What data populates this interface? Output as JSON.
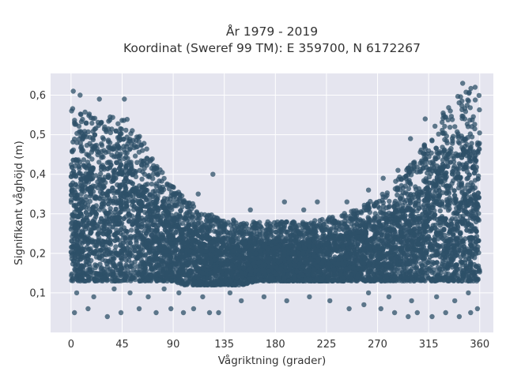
{
  "chart_data": {
    "type": "scatter",
    "title_line1": "År 1979 - 2019",
    "title_line2": "Koordinat (Sweref 99 TM): E 359700, N 6172267",
    "xlabel": "Vågriktning (grader)",
    "ylabel": "Signifikant våghöjd (m)",
    "xlim": [
      -18,
      372
    ],
    "ylim": [
      0.0,
      0.655
    ],
    "xticks": [
      0,
      45,
      90,
      135,
      180,
      225,
      270,
      315,
      360
    ],
    "xtick_labels": [
      "0",
      "45",
      "90",
      "135",
      "180",
      "225",
      "270",
      "315",
      "360"
    ],
    "yticks": [
      0.1,
      0.2,
      0.3,
      0.4,
      0.5,
      0.6
    ],
    "ytick_labels": [
      "0,1",
      "0,2",
      "0,3",
      "0,4",
      "0,5",
      "0,6"
    ],
    "marker_color": "#2e5068",
    "plot_background": "#e5e5ef",
    "grid": true,
    "dense_band": [
      {
        "x": 0,
        "ymin": 0.13,
        "ymax": 0.58
      },
      {
        "x": 10,
        "ymin": 0.13,
        "ymax": 0.56
      },
      {
        "x": 20,
        "ymin": 0.13,
        "ymax": 0.55
      },
      {
        "x": 30,
        "ymin": 0.13,
        "ymax": 0.55
      },
      {
        "x": 40,
        "ymin": 0.13,
        "ymax": 0.56
      },
      {
        "x": 50,
        "ymin": 0.13,
        "ymax": 0.54
      },
      {
        "x": 60,
        "ymin": 0.13,
        "ymax": 0.5
      },
      {
        "x": 70,
        "ymin": 0.13,
        "ymax": 0.45
      },
      {
        "x": 80,
        "ymin": 0.13,
        "ymax": 0.41
      },
      {
        "x": 90,
        "ymin": 0.13,
        "ymax": 0.37
      },
      {
        "x": 100,
        "ymin": 0.12,
        "ymax": 0.34
      },
      {
        "x": 110,
        "ymin": 0.12,
        "ymax": 0.32
      },
      {
        "x": 120,
        "ymin": 0.12,
        "ymax": 0.3
      },
      {
        "x": 135,
        "ymin": 0.12,
        "ymax": 0.29
      },
      {
        "x": 150,
        "ymin": 0.12,
        "ymax": 0.28
      },
      {
        "x": 165,
        "ymin": 0.13,
        "ymax": 0.28
      },
      {
        "x": 180,
        "ymin": 0.13,
        "ymax": 0.28
      },
      {
        "x": 195,
        "ymin": 0.13,
        "ymax": 0.28
      },
      {
        "x": 210,
        "ymin": 0.13,
        "ymax": 0.28
      },
      {
        "x": 225,
        "ymin": 0.13,
        "ymax": 0.29
      },
      {
        "x": 240,
        "ymin": 0.13,
        "ymax": 0.3
      },
      {
        "x": 255,
        "ymin": 0.13,
        "ymax": 0.32
      },
      {
        "x": 270,
        "ymin": 0.13,
        "ymax": 0.34
      },
      {
        "x": 285,
        "ymin": 0.13,
        "ymax": 0.38
      },
      {
        "x": 300,
        "ymin": 0.13,
        "ymax": 0.43
      },
      {
        "x": 310,
        "ymin": 0.13,
        "ymax": 0.47
      },
      {
        "x": 320,
        "ymin": 0.13,
        "ymax": 0.52
      },
      {
        "x": 330,
        "ymin": 0.13,
        "ymax": 0.57
      },
      {
        "x": 340,
        "ymin": 0.13,
        "ymax": 0.6
      },
      {
        "x": 350,
        "ymin": 0.13,
        "ymax": 0.62
      },
      {
        "x": 360,
        "ymin": 0.13,
        "ymax": 0.61
      }
    ],
    "outliers": [
      {
        "x": 2,
        "y": 0.61
      },
      {
        "x": 8,
        "y": 0.6
      },
      {
        "x": 25,
        "y": 0.59
      },
      {
        "x": 47,
        "y": 0.59
      },
      {
        "x": 125,
        "y": 0.4
      },
      {
        "x": 112,
        "y": 0.35
      },
      {
        "x": 158,
        "y": 0.31
      },
      {
        "x": 188,
        "y": 0.33
      },
      {
        "x": 205,
        "y": 0.31
      },
      {
        "x": 217,
        "y": 0.33
      },
      {
        "x": 243,
        "y": 0.33
      },
      {
        "x": 262,
        "y": 0.36
      },
      {
        "x": 275,
        "y": 0.39
      },
      {
        "x": 288,
        "y": 0.41
      },
      {
        "x": 299,
        "y": 0.49
      },
      {
        "x": 312,
        "y": 0.54
      },
      {
        "x": 345,
        "y": 0.63
      },
      {
        "x": 356,
        "y": 0.62
      },
      {
        "x": 3,
        "y": 0.05
      },
      {
        "x": 15,
        "y": 0.06
      },
      {
        "x": 32,
        "y": 0.04
      },
      {
        "x": 44,
        "y": 0.05
      },
      {
        "x": 60,
        "y": 0.06
      },
      {
        "x": 75,
        "y": 0.05
      },
      {
        "x": 88,
        "y": 0.06
      },
      {
        "x": 99,
        "y": 0.05
      },
      {
        "x": 108,
        "y": 0.06
      },
      {
        "x": 122,
        "y": 0.05
      },
      {
        "x": 130,
        "y": 0.05
      },
      {
        "x": 150,
        "y": 0.08
      },
      {
        "x": 170,
        "y": 0.09
      },
      {
        "x": 190,
        "y": 0.08
      },
      {
        "x": 210,
        "y": 0.09
      },
      {
        "x": 228,
        "y": 0.08
      },
      {
        "x": 245,
        "y": 0.06
      },
      {
        "x": 258,
        "y": 0.07
      },
      {
        "x": 273,
        "y": 0.06
      },
      {
        "x": 285,
        "y": 0.05
      },
      {
        "x": 297,
        "y": 0.04
      },
      {
        "x": 305,
        "y": 0.05
      },
      {
        "x": 318,
        "y": 0.04
      },
      {
        "x": 330,
        "y": 0.05
      },
      {
        "x": 342,
        "y": 0.04
      },
      {
        "x": 352,
        "y": 0.05
      },
      {
        "x": 358,
        "y": 0.06
      },
      {
        "x": 5,
        "y": 0.1
      },
      {
        "x": 20,
        "y": 0.09
      },
      {
        "x": 38,
        "y": 0.11
      },
      {
        "x": 52,
        "y": 0.1
      },
      {
        "x": 68,
        "y": 0.09
      },
      {
        "x": 82,
        "y": 0.11
      },
      {
        "x": 95,
        "y": 0.1
      },
      {
        "x": 116,
        "y": 0.09
      },
      {
        "x": 140,
        "y": 0.1
      },
      {
        "x": 262,
        "y": 0.1
      },
      {
        "x": 280,
        "y": 0.09
      },
      {
        "x": 300,
        "y": 0.08
      },
      {
        "x": 322,
        "y": 0.09
      },
      {
        "x": 338,
        "y": 0.08
      },
      {
        "x": 350,
        "y": 0.1
      }
    ]
  }
}
